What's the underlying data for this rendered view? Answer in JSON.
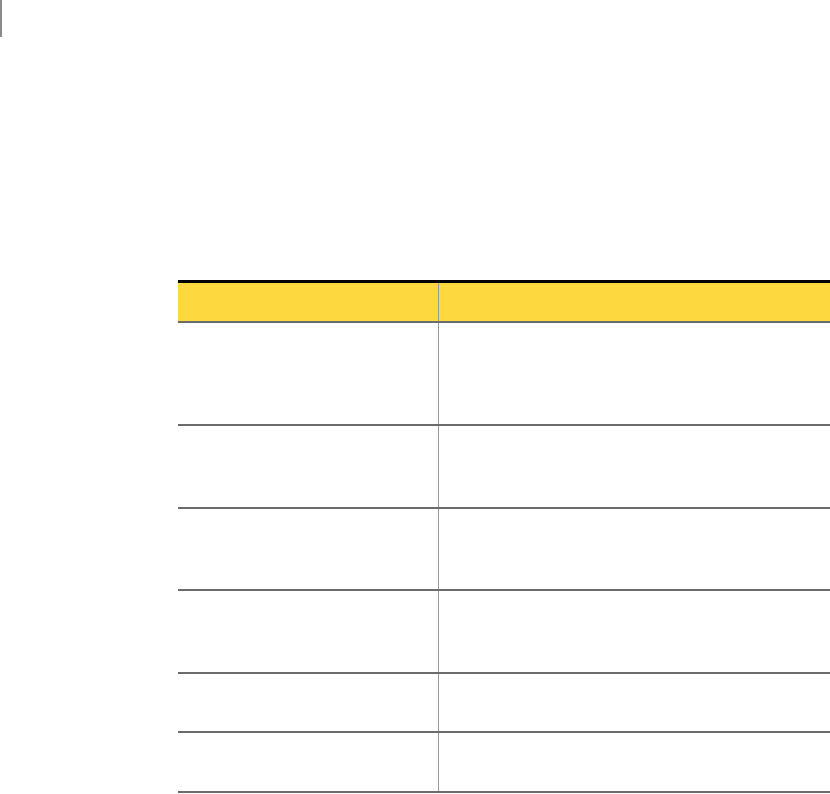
{
  "colors": {
    "header_fill": "#FDD83F",
    "rule": "#6B6B6B",
    "top_rule": "#000000"
  },
  "table": {
    "headers": [
      "",
      ""
    ],
    "rows": [
      [
        "",
        ""
      ],
      [
        "",
        ""
      ],
      [
        "",
        ""
      ],
      [
        "",
        ""
      ],
      [
        "",
        ""
      ],
      [
        "",
        ""
      ]
    ]
  }
}
